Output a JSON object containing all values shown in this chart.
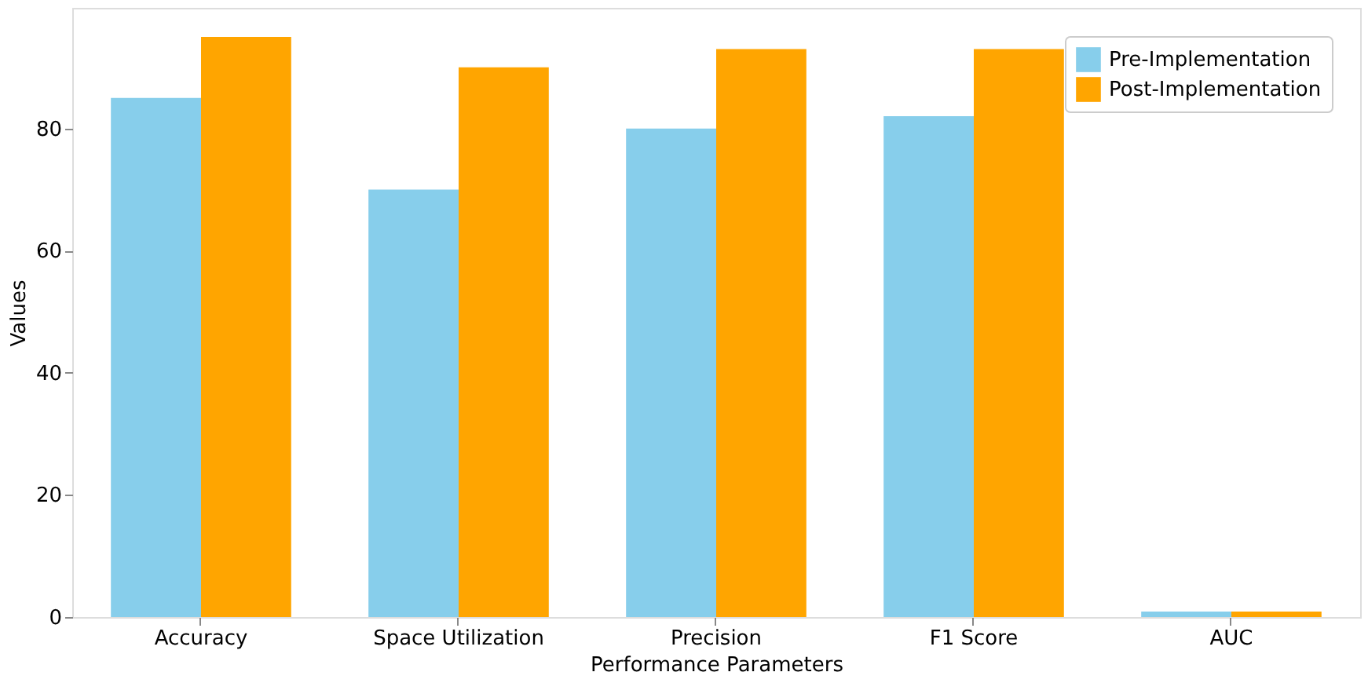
{
  "chart_data": {
    "type": "bar",
    "xlabel": "Performance Parameters",
    "ylabel": "Values",
    "categories": [
      "Accuracy",
      "Space Utilization",
      "Precision",
      "F1 Score",
      "AUC"
    ],
    "series": [
      {
        "name": "Pre-Implementation",
        "color": "#87ceeb",
        "values": [
          85,
          70,
          80,
          82,
          0.9
        ]
      },
      {
        "name": "Post-Implementation",
        "color": "#ffa500",
        "values": [
          95,
          90,
          93,
          93,
          0.9
        ]
      }
    ],
    "ylim": [
      0,
      99.75
    ],
    "yticks": [
      0,
      20,
      40,
      60,
      80
    ],
    "grid": false,
    "legend": "top right"
  }
}
